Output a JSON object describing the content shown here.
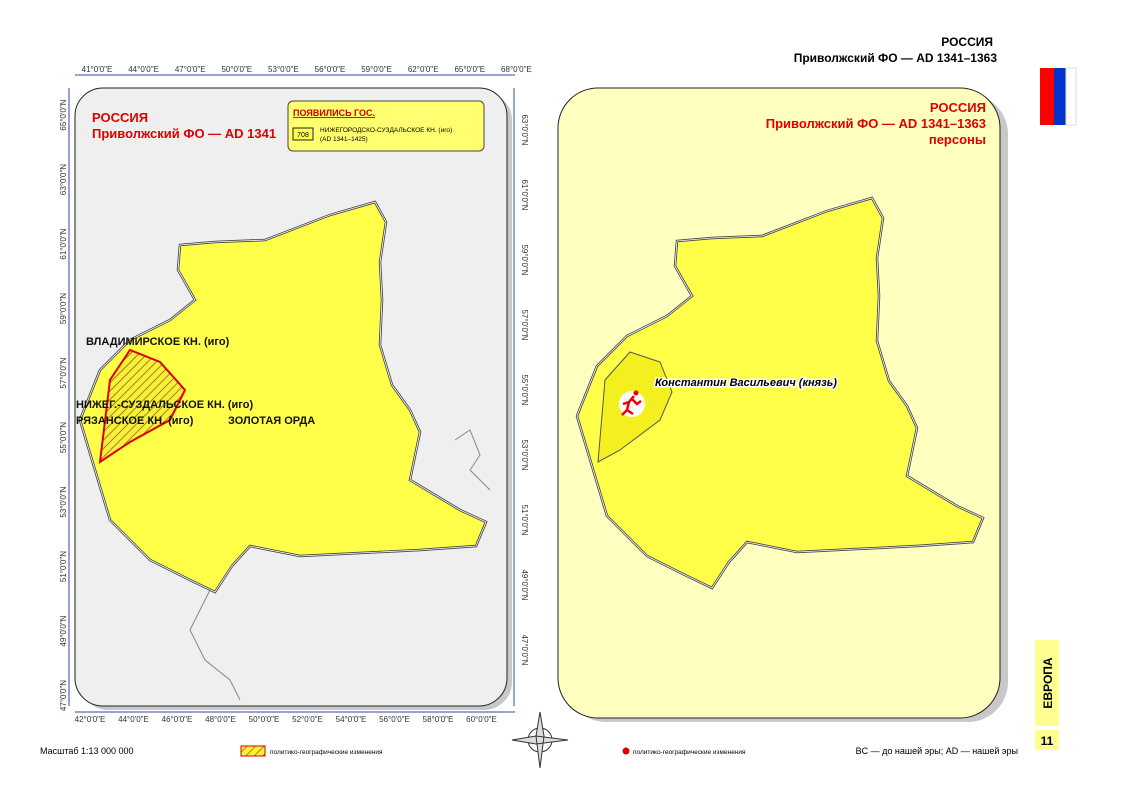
{
  "header": {
    "title": "РОССИЯ",
    "subtitle": "Приволжский ФО — AD 1341–1363"
  },
  "left_map": {
    "title": "РОССИЯ",
    "subtitle": "Приволжский ФО — AD 1341",
    "legend": {
      "title": "ПОЯВИЛИСЬ ГОС.",
      "badge": "708",
      "name": "НИЖЕГОРОДСКО-СУЗДАЛЬСКОЕ КН. (иго)",
      "period": "(AD 1341–1425)"
    },
    "labels": [
      "ВЛАДИМИРСКОЕ КН. (иго)",
      "НИЖЕГ.-СУЗДАЛЬСКОЕ КН. (иго)",
      "РЯЗАНСКОЕ КН. (иго)",
      "ЗОЛОТАЯ ОРДА"
    ],
    "top_ticks": [
      "41°0'0\"E",
      "44°0'0\"E",
      "47°0'0\"E",
      "50°0'0\"E",
      "53°0'0\"E",
      "56°0'0\"E",
      "59°0'0\"E",
      "62°0'0\"E",
      "65°0'0\"E",
      "68°0'0\"E"
    ],
    "bottom_ticks": [
      "42°0'0\"E",
      "44°0'0\"E",
      "46°0'0\"E",
      "48°0'0\"E",
      "50°0'0\"E",
      "52°0'0\"E",
      "54°0'0\"E",
      "56°0'0\"E",
      "58°0'0\"E",
      "60°0'0\"E"
    ],
    "left_ticks": [
      "65°0'0\"N",
      "63°0'0\"N",
      "61°0'0\"N",
      "59°0'0\"N",
      "57°0'0\"N",
      "55°0'0\"N",
      "53°0'0\"N",
      "51°0'0\"N",
      "49°0'0\"N",
      "47°0'0\"N"
    ],
    "right_ticks": [
      "63°0'0\"N",
      "61°0'0\"N",
      "59°0'0\"N",
      "57°0'0\"N",
      "55°0'0\"N",
      "53°0'0\"N",
      "51°0'0\"N",
      "49°0'0\"N",
      "47°0'0\"N"
    ]
  },
  "right_map": {
    "title": "РОССИЯ",
    "subtitle": "Приволжский ФО — AD 1341–1363",
    "caption": "персоны",
    "person": "Константин Васильевич (князь)"
  },
  "footer": {
    "scale": "Масштаб 1:13 000 000",
    "hatch_legend": "политико-географические изменения",
    "dot_legend": "политико-географические изменения",
    "era": "BC — до нашей эры; AD — нашей эры",
    "region": "ЕВРОПА",
    "page": "11"
  }
}
